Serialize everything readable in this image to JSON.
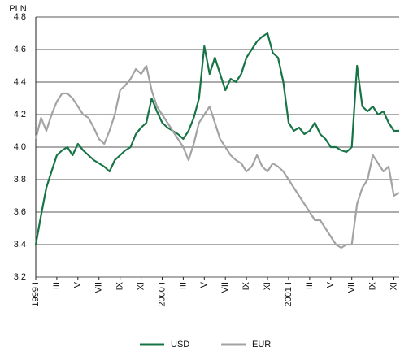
{
  "chart_data": {
    "type": "line",
    "ylabel": "PLN",
    "ylim": [
      3.2,
      4.8
    ],
    "yticks": [
      3.2,
      3.4,
      3.6,
      3.8,
      {
        "value": 4,
        "label": "4.0"
      },
      4.2,
      4.4,
      4.6,
      4.8
    ],
    "xlim": [
      0,
      34.5
    ],
    "xticks": [
      {
        "value": 0,
        "label": "1999 I"
      },
      {
        "value": 2,
        "label": "III"
      },
      {
        "value": 4,
        "label": "V"
      },
      {
        "value": 6,
        "label": "VII"
      },
      {
        "value": 8,
        "label": "IX"
      },
      {
        "value": 10,
        "label": "XI"
      },
      {
        "value": 12,
        "label": "2000 I"
      },
      {
        "value": 14,
        "label": "III"
      },
      {
        "value": 16,
        "label": "V"
      },
      {
        "value": 18,
        "label": "VII"
      },
      {
        "value": 20,
        "label": "IX"
      },
      {
        "value": 22,
        "label": "XI"
      },
      {
        "value": 24,
        "label": "2001 I"
      },
      {
        "value": 26,
        "label": "III"
      },
      {
        "value": 28,
        "label": "V"
      },
      {
        "value": 30,
        "label": "VII"
      },
      {
        "value": 32,
        "label": "IX"
      },
      {
        "value": 34,
        "label": "XI"
      }
    ],
    "grid": true,
    "x": [
      0,
      0.5,
      1,
      1.5,
      2,
      2.5,
      3,
      3.5,
      4,
      4.5,
      5,
      5.5,
      6,
      6.5,
      7,
      7.5,
      8,
      8.5,
      9,
      9.5,
      10,
      10.5,
      11,
      11.5,
      12,
      12.5,
      13,
      13.5,
      14,
      14.5,
      15,
      15.5,
      16,
      16.5,
      17,
      17.5,
      18,
      18.5,
      19,
      19.5,
      20,
      20.5,
      21,
      21.5,
      22,
      22.5,
      23,
      23.5,
      24,
      24.5,
      25,
      25.5,
      26,
      26.5,
      27,
      27.5,
      28,
      28.5,
      29,
      29.5,
      30,
      30.5,
      31,
      31.5,
      32,
      32.5,
      33,
      33.5,
      34,
      34.5
    ],
    "series": [
      {
        "name": "USD",
        "color": "#177446",
        "values": [
          3.4,
          3.58,
          3.75,
          3.85,
          3.95,
          3.98,
          4.0,
          3.95,
          4.02,
          3.98,
          3.95,
          3.92,
          3.9,
          3.88,
          3.85,
          3.92,
          3.95,
          3.98,
          4.0,
          4.08,
          4.12,
          4.15,
          4.3,
          4.22,
          4.15,
          4.12,
          4.1,
          4.08,
          4.05,
          4.1,
          4.18,
          4.3,
          4.62,
          4.45,
          4.55,
          4.45,
          4.35,
          4.42,
          4.4,
          4.45,
          4.55,
          4.6,
          4.65,
          4.68,
          4.7,
          4.58,
          4.55,
          4.4,
          4.15,
          4.1,
          4.12,
          4.08,
          4.1,
          4.15,
          4.08,
          4.05,
          4.0,
          4.0,
          3.98,
          3.97,
          4.0,
          4.5,
          4.25,
          4.22,
          4.25,
          4.2,
          4.22,
          4.15,
          4.1,
          4.1
        ]
      },
      {
        "name": "EUR",
        "color": "#a3a3a3",
        "values": [
          4.05,
          4.18,
          4.1,
          4.2,
          4.28,
          4.33,
          4.33,
          4.3,
          4.25,
          4.2,
          4.18,
          4.12,
          4.05,
          4.02,
          4.1,
          4.2,
          4.35,
          4.38,
          4.42,
          4.48,
          4.45,
          4.5,
          4.35,
          4.25,
          4.2,
          4.15,
          4.1,
          4.05,
          4.0,
          3.92,
          4.02,
          4.15,
          4.2,
          4.25,
          4.15,
          4.05,
          4.0,
          3.95,
          3.92,
          3.9,
          3.85,
          3.88,
          3.95,
          3.88,
          3.85,
          3.9,
          3.88,
          3.85,
          3.8,
          3.75,
          3.7,
          3.65,
          3.6,
          3.55,
          3.55,
          3.5,
          3.45,
          3.4,
          3.38,
          3.4,
          3.4,
          3.65,
          3.75,
          3.8,
          3.95,
          3.9,
          3.85,
          3.88,
          3.7,
          3.72
        ]
      }
    ]
  }
}
